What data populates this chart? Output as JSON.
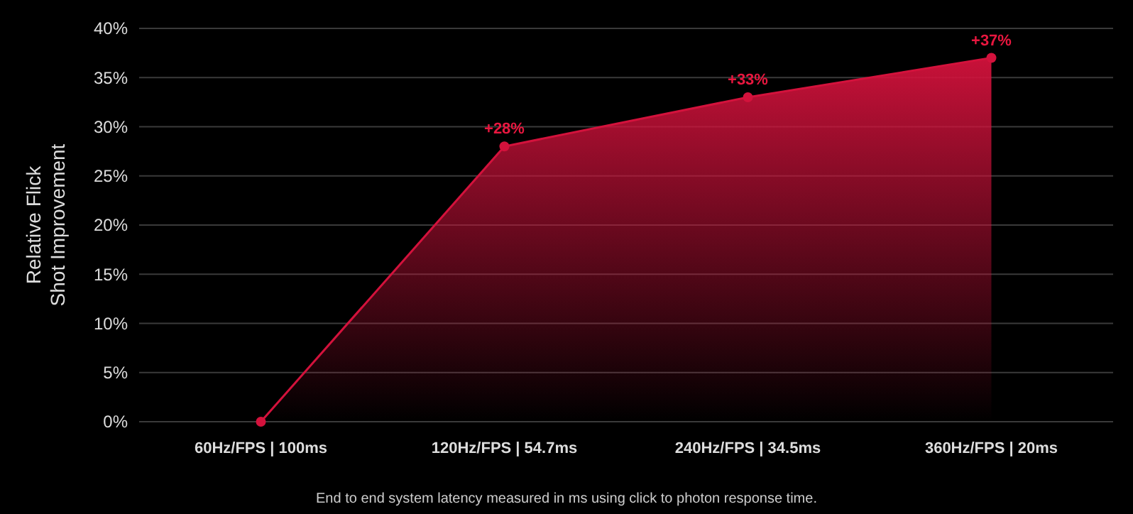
{
  "chart_data": {
    "type": "area",
    "ylabel": "Relative Flick Shot Improvement",
    "categories": [
      "60Hz/FPS | 100ms",
      "120Hz/FPS | 54.7ms",
      "240Hz/FPS | 34.5ms",
      "360Hz/FPS | 20ms"
    ],
    "series": [
      {
        "color": "#d3123c",
        "values": [
          0,
          28,
          33,
          37
        ],
        "value_labels": [
          null,
          "+28%",
          "+33%",
          "+37%"
        ]
      }
    ],
    "ylim": [
      0,
      40
    ],
    "yticks": [
      {
        "value": 0,
        "label": "0%"
      },
      {
        "value": 5,
        "label": "5%"
      },
      {
        "value": 10,
        "label": "10%"
      },
      {
        "value": 15,
        "label": "15%"
      },
      {
        "value": 20,
        "label": "20%"
      },
      {
        "value": 25,
        "label": "25%"
      },
      {
        "value": 30,
        "label": "30%"
      },
      {
        "value": 35,
        "label": "35%"
      },
      {
        "value": 40,
        "label": "40%"
      }
    ],
    "grid": "y",
    "marker": "circle",
    "annotations": [
      "End to end system latency measured in ms using click to photon response time."
    ]
  }
}
